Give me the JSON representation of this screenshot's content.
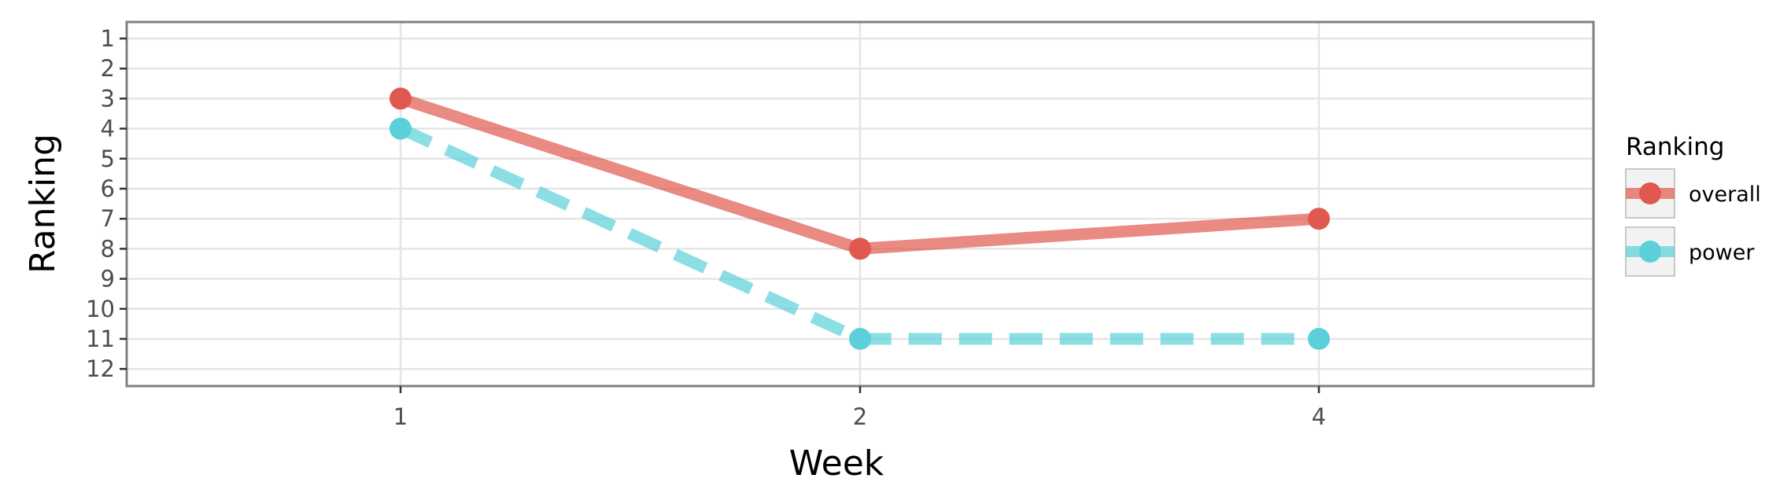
{
  "chart_data": {
    "type": "line",
    "title": "",
    "xlabel": "Week",
    "ylabel": "Ranking",
    "categories": [
      "1",
      "2",
      "4"
    ],
    "y_ticks": [
      "1",
      "2",
      "3",
      "4",
      "5",
      "6",
      "7",
      "8",
      "9",
      "10",
      "11",
      "12"
    ],
    "ylim": [
      1,
      12
    ],
    "y_reversed": true,
    "grid": true,
    "legend": {
      "title": "Ranking",
      "placement": "right"
    },
    "series": [
      {
        "name": "overall",
        "values": [
          3,
          8,
          7
        ],
        "color": "#e0584f",
        "line_style": "solid"
      },
      {
        "name": "power",
        "values": [
          4,
          11,
          11
        ],
        "color": "#5bd0da",
        "line_style": "dashed"
      }
    ]
  }
}
